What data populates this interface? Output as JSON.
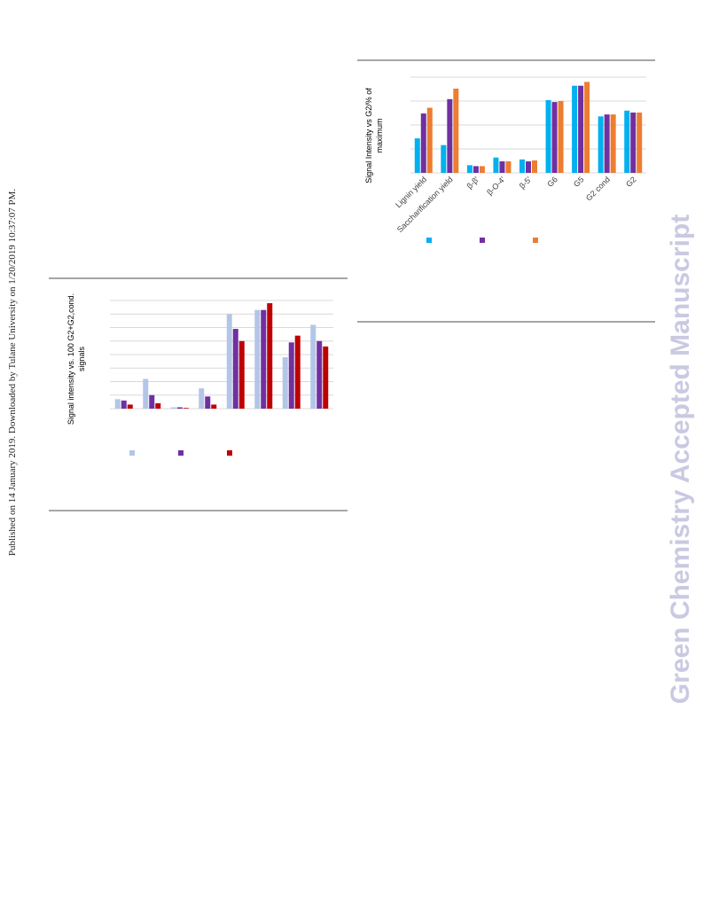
{
  "sidebar_note": "Published on 14 January 2019. Downloaded by Tulane University on 1/20/2019 10:37:07 PM.",
  "watermark": "Green Chemistry Accepted Manuscript",
  "colors": {
    "series_a": "#00b0f0",
    "series_b": "#7030a0",
    "series_c": "#ed7d31",
    "series_d": "#b4c6e7",
    "series_e": "#c00000",
    "gridline": "#d9d9d9",
    "rule": "#a6a6a6"
  },
  "chart_data": [
    {
      "type": "bar",
      "ylabel": "Signal Intensity vs G2/% of maximum",
      "ylim": [
        0,
        100
      ],
      "grid": true,
      "legend": "bottom",
      "categories": [
        "Lignin yield",
        "Saccharification yield",
        "β-β'",
        "β-O-4'",
        "β-5'",
        "G6",
        "G5",
        "G2 cond",
        "G2"
      ],
      "series": [
        {
          "values": [
            36,
            29,
            8,
            16,
            14,
            76,
            91,
            59,
            65
          ]
        },
        {
          "values": [
            62,
            77,
            7,
            12,
            12,
            74,
            91,
            61,
            63
          ]
        },
        {
          "values": [
            68,
            88,
            7,
            12,
            13,
            75,
            95,
            61,
            63
          ]
        }
      ]
    },
    {
      "type": "bar",
      "ylabel": "Signal intensity vs. 100 G2+G2,cond. signals",
      "ylim": [
        0,
        80
      ],
      "grid": true,
      "legend": "bottom",
      "categories": [
        "",
        "",
        "",
        "",
        "",
        "",
        "",
        ""
      ],
      "series": [
        {
          "values": [
            7,
            22,
            1,
            15,
            70,
            73,
            38,
            62
          ]
        },
        {
          "values": [
            6,
            10,
            1,
            9,
            59,
            73,
            49,
            50
          ]
        },
        {
          "values": [
            3,
            4,
            0.5,
            3,
            50,
            78,
            54,
            46
          ]
        }
      ]
    }
  ]
}
